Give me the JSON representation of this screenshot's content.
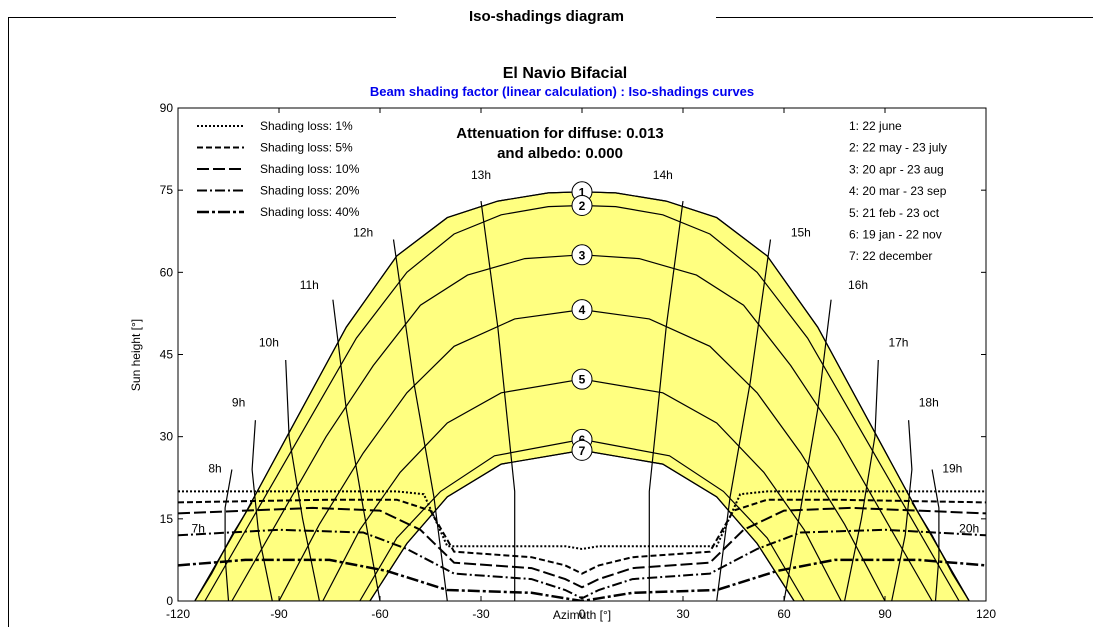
{
  "panel": {
    "title": "Iso-shadings diagram"
  },
  "chart_data": {
    "type": "line",
    "title": "El Navio Bifacial",
    "subtitle": "Beam shading factor (linear calculation) : Iso-shadings curves",
    "xlabel": "Azimuth [°]",
    "ylabel": "Sun height [°]",
    "xlim": [
      -120,
      120
    ],
    "ylim": [
      0,
      90
    ],
    "xticks": [
      "-120",
      "-90",
      "-60",
      "-30",
      "0",
      "30",
      "60",
      "90",
      "120"
    ],
    "yticks": [
      "0",
      "15",
      "30",
      "45",
      "60",
      "75",
      "90"
    ],
    "annotation_lines": [
      "Attenuation for diffuse: 0.013",
      "and albedo: 0.000"
    ],
    "colors": {
      "sun_zone": "#ffff80",
      "subtitle": "#0000ee",
      "lines": "#000000"
    },
    "loss_legend": [
      {
        "label": "Shading loss: 1%",
        "dash": "2,2",
        "width": 2
      },
      {
        "label": "Shading loss: 5%",
        "dash": "6,3",
        "width": 2
      },
      {
        "label": "Shading loss: 10%",
        "dash": "12,4",
        "width": 2
      },
      {
        "label": "Shading loss: 20%",
        "dash": "10,3,2,3",
        "width": 2
      },
      {
        "label": "Shading loss: 40%",
        "dash": "12,3,3,3",
        "width": 2.5
      }
    ],
    "date_legend": [
      "1: 22 june",
      "2: 22 may - 23 july",
      "3: 20 apr - 23 aug",
      "4: 20 mar - 23 sep",
      "5: 21 feb - 23 oct",
      "6: 19 jan - 22 nov",
      "7: 22 december"
    ],
    "sun_paths": [
      {
        "label": "1",
        "points": [
          [
            -115,
            0
          ],
          [
            -100,
            16
          ],
          [
            -85,
            33
          ],
          [
            -70,
            50
          ],
          [
            -55,
            63
          ],
          [
            -40,
            70
          ],
          [
            -25,
            73
          ],
          [
            -10,
            74.5
          ],
          [
            0,
            74.7
          ],
          [
            10,
            74.5
          ],
          [
            25,
            73
          ],
          [
            40,
            70
          ],
          [
            55,
            63
          ],
          [
            70,
            50
          ],
          [
            85,
            33
          ],
          [
            100,
            16
          ],
          [
            115,
            0
          ]
        ]
      },
      {
        "label": "2",
        "points": [
          [
            -112,
            0
          ],
          [
            -97,
            16
          ],
          [
            -82,
            32
          ],
          [
            -67,
            48
          ],
          [
            -52,
            60
          ],
          [
            -38,
            67
          ],
          [
            -24,
            70.5
          ],
          [
            -10,
            72
          ],
          [
            0,
            72.2
          ],
          [
            10,
            72
          ],
          [
            24,
            70.5
          ],
          [
            38,
            67
          ],
          [
            52,
            60
          ],
          [
            67,
            48
          ],
          [
            82,
            32
          ],
          [
            97,
            16
          ],
          [
            112,
            0
          ]
        ]
      },
      {
        "label": "3",
        "points": [
          [
            -104,
            0
          ],
          [
            -90,
            15
          ],
          [
            -76,
            30
          ],
          [
            -62,
            43
          ],
          [
            -48,
            54
          ],
          [
            -34,
            59.5
          ],
          [
            -17,
            62.5
          ],
          [
            0,
            63.2
          ],
          [
            17,
            62.5
          ],
          [
            34,
            59.5
          ],
          [
            48,
            54
          ],
          [
            62,
            43
          ],
          [
            76,
            30
          ],
          [
            90,
            15
          ],
          [
            104,
            0
          ]
        ]
      },
      {
        "label": "4",
        "points": [
          [
            -90,
            0
          ],
          [
            -78,
            14
          ],
          [
            -65,
            27
          ],
          [
            -52,
            38
          ],
          [
            -38,
            46.5
          ],
          [
            -20,
            51.5
          ],
          [
            0,
            53.2
          ],
          [
            20,
            51.5
          ],
          [
            38,
            46.5
          ],
          [
            52,
            38
          ],
          [
            65,
            27
          ],
          [
            78,
            14
          ],
          [
            90,
            0
          ]
        ]
      },
      {
        "label": "5",
        "points": [
          [
            -77,
            0
          ],
          [
            -66,
            13
          ],
          [
            -54,
            23.5
          ],
          [
            -40,
            32.5
          ],
          [
            -24,
            38
          ],
          [
            0,
            40.5
          ],
          [
            24,
            38
          ],
          [
            40,
            32.5
          ],
          [
            54,
            23.5
          ],
          [
            66,
            13
          ],
          [
            77,
            0
          ]
        ]
      },
      {
        "label": "6",
        "points": [
          [
            -66,
            0
          ],
          [
            -55,
            11.5
          ],
          [
            -42,
            20
          ],
          [
            -26,
            26.5
          ],
          [
            0,
            29.5
          ],
          [
            26,
            26.5
          ],
          [
            42,
            20
          ],
          [
            55,
            11.5
          ],
          [
            66,
            0
          ]
        ]
      },
      {
        "label": "7",
        "points": [
          [
            -63,
            0
          ],
          [
            -52,
            10.5
          ],
          [
            -40,
            19
          ],
          [
            -24,
            25
          ],
          [
            0,
            27.5
          ],
          [
            24,
            25
          ],
          [
            40,
            19
          ],
          [
            52,
            10.5
          ],
          [
            63,
            0
          ]
        ]
      }
    ],
    "hour_lines": [
      {
        "label": "7h",
        "lx": -114,
        "ly": 12.5,
        "points": [
          [
            -115,
            0
          ],
          [
            -110,
            5
          ],
          [
            -104,
            12
          ],
          [
            -98,
            18
          ]
        ]
      },
      {
        "label": "8h",
        "lx": -109,
        "ly": 23.5,
        "points": [
          [
            -105,
            0
          ],
          [
            -106,
            8
          ],
          [
            -106,
            17
          ],
          [
            -104,
            24
          ]
        ]
      },
      {
        "label": "9h",
        "lx": -102,
        "ly": 35.5,
        "points": [
          [
            -92,
            0
          ],
          [
            -96,
            12
          ],
          [
            -98,
            24
          ],
          [
            -97,
            33
          ]
        ]
      },
      {
        "label": "10h",
        "lx": -93,
        "ly": 46.5,
        "points": [
          [
            -78,
            0
          ],
          [
            -83,
            15
          ],
          [
            -87,
            30
          ],
          [
            -88,
            44
          ]
        ]
      },
      {
        "label": "11h",
        "lx": -81,
        "ly": 57,
        "points": [
          [
            -60,
            0
          ],
          [
            -65,
            17
          ],
          [
            -70,
            35
          ],
          [
            -74,
            55
          ]
        ]
      },
      {
        "label": "12h",
        "lx": -65,
        "ly": 66.5,
        "points": [
          [
            -40,
            0
          ],
          [
            -44,
            19
          ],
          [
            -50,
            40
          ],
          [
            -56,
            66
          ]
        ]
      },
      {
        "label": "13h",
        "lx": -30,
        "ly": 77,
        "points": [
          [
            -20,
            0
          ],
          [
            -20,
            20
          ],
          [
            -25,
            50
          ],
          [
            -30,
            73
          ]
        ]
      },
      {
        "label": "14h",
        "lx": 24,
        "ly": 77,
        "points": [
          [
            20,
            0
          ],
          [
            20,
            20
          ],
          [
            25,
            50
          ],
          [
            30,
            73
          ]
        ]
      },
      {
        "label": "15h",
        "lx": 65,
        "ly": 66.5,
        "points": [
          [
            40,
            0
          ],
          [
            44,
            19
          ],
          [
            50,
            40
          ],
          [
            56,
            66
          ]
        ]
      },
      {
        "label": "16h",
        "lx": 82,
        "ly": 57,
        "points": [
          [
            60,
            0
          ],
          [
            65,
            17
          ],
          [
            70,
            35
          ],
          [
            74,
            55
          ]
        ]
      },
      {
        "label": "17h",
        "lx": 94,
        "ly": 46.5,
        "points": [
          [
            78,
            0
          ],
          [
            83,
            15
          ],
          [
            87,
            30
          ],
          [
            88,
            44
          ]
        ]
      },
      {
        "label": "18h",
        "lx": 103,
        "ly": 35.5,
        "points": [
          [
            92,
            0
          ],
          [
            96,
            12
          ],
          [
            98,
            24
          ],
          [
            97,
            33
          ]
        ]
      },
      {
        "label": "19h",
        "lx": 110,
        "ly": 23.5,
        "points": [
          [
            105,
            0
          ],
          [
            106,
            8
          ],
          [
            106,
            17
          ],
          [
            104,
            24
          ]
        ]
      },
      {
        "label": "20h",
        "lx": 115,
        "ly": 12.5,
        "points": [
          [
            115,
            0
          ],
          [
            110,
            5
          ],
          [
            104,
            12
          ],
          [
            98,
            18
          ]
        ]
      }
    ],
    "iso_curves": [
      {
        "level": "1%",
        "points": [
          [
            -120,
            20
          ],
          [
            -75,
            20
          ],
          [
            -55,
            20
          ],
          [
            -47,
            19.5
          ],
          [
            -40,
            10
          ],
          [
            -20,
            10
          ],
          [
            -5,
            10
          ],
          [
            0,
            9.5
          ],
          [
            5,
            10
          ],
          [
            20,
            10
          ],
          [
            40,
            10
          ],
          [
            47,
            19.5
          ],
          [
            55,
            20
          ],
          [
            75,
            20
          ],
          [
            120,
            20
          ]
        ]
      },
      {
        "level": "5%",
        "points": [
          [
            -120,
            18
          ],
          [
            -75,
            18.5
          ],
          [
            -55,
            18.5
          ],
          [
            -45,
            16.5
          ],
          [
            -38,
            9
          ],
          [
            -15,
            8
          ],
          [
            -5,
            6.5
          ],
          [
            0,
            5
          ],
          [
            5,
            6.5
          ],
          [
            15,
            8
          ],
          [
            38,
            9
          ],
          [
            45,
            16.5
          ],
          [
            55,
            18.5
          ],
          [
            75,
            18.5
          ],
          [
            120,
            18
          ]
        ]
      },
      {
        "level": "10%",
        "points": [
          [
            -120,
            16
          ],
          [
            -80,
            17
          ],
          [
            -60,
            16.5
          ],
          [
            -48,
            13
          ],
          [
            -38,
            7
          ],
          [
            -15,
            6
          ],
          [
            -5,
            4
          ],
          [
            0,
            2.5
          ],
          [
            5,
            4
          ],
          [
            15,
            6
          ],
          [
            38,
            7
          ],
          [
            48,
            13
          ],
          [
            60,
            16.5
          ],
          [
            80,
            17
          ],
          [
            120,
            16
          ]
        ]
      },
      {
        "level": "20%",
        "points": [
          [
            -120,
            12
          ],
          [
            -90,
            13
          ],
          [
            -65,
            12.5
          ],
          [
            -52,
            9.5
          ],
          [
            -38,
            5
          ],
          [
            -15,
            4
          ],
          [
            -5,
            2
          ],
          [
            0,
            0.5
          ],
          [
            5,
            2
          ],
          [
            15,
            4
          ],
          [
            38,
            5
          ],
          [
            52,
            9.5
          ],
          [
            65,
            12.5
          ],
          [
            90,
            13
          ],
          [
            120,
            12
          ]
        ]
      },
      {
        "level": "40%",
        "points": [
          [
            -120,
            6.5
          ],
          [
            -100,
            7.5
          ],
          [
            -75,
            7.5
          ],
          [
            -58,
            5.5
          ],
          [
            -40,
            2
          ],
          [
            -15,
            1.5
          ],
          [
            -5,
            0.5
          ],
          [
            0,
            0
          ],
          [
            5,
            0.5
          ],
          [
            15,
            1.5
          ],
          [
            40,
            2
          ],
          [
            58,
            5.5
          ],
          [
            75,
            7.5
          ],
          [
            100,
            7.5
          ],
          [
            120,
            6.5
          ]
        ]
      }
    ]
  }
}
